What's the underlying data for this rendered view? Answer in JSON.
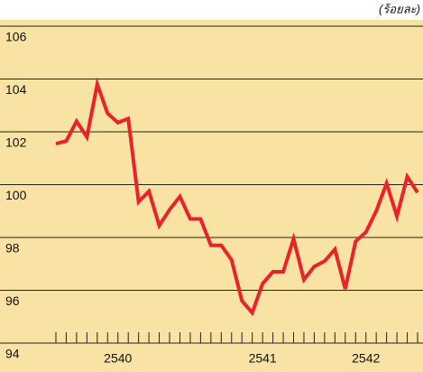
{
  "chart_data": {
    "type": "line",
    "y_label": "(ร้อยละ)",
    "categories": [
      null,
      null,
      null,
      null,
      null,
      null,
      "2540",
      null,
      null,
      null,
      null,
      null,
      null,
      null,
      null,
      null,
      null,
      null,
      null,
      null,
      "2541",
      null,
      null,
      null,
      null,
      null,
      null,
      null,
      null,
      null,
      "2542",
      null,
      null,
      null,
      null,
      null
    ],
    "series": [
      {
        "color": "#e8232a",
        "values": [
          101.55,
          101.65,
          102.4,
          101.8,
          103.8,
          102.7,
          102.35,
          102.5,
          99.35,
          99.75,
          98.45,
          99.05,
          99.55,
          98.7,
          98.7,
          97.7,
          97.7,
          97.15,
          95.6,
          95.15,
          96.25,
          96.7,
          96.7,
          97.95,
          96.4,
          96.9,
          97.1,
          97.55,
          96.05,
          97.85,
          98.2,
          99.0,
          100.05,
          98.8,
          100.3,
          99.7
        ]
      }
    ],
    "ylim": [
      94,
      106
    ],
    "yticks": [
      94,
      96,
      98,
      100,
      102,
      104,
      106
    ],
    "grid": true
  }
}
